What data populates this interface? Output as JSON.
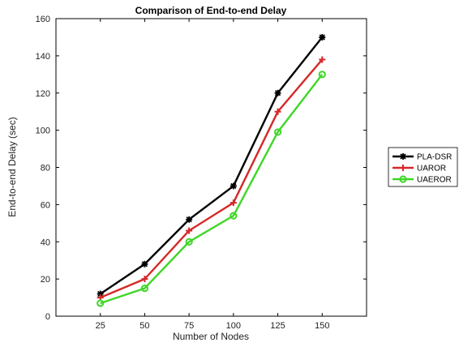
{
  "chart_data": {
    "type": "line",
    "title": "Comparison of End-to-end Delay",
    "xlabel": "Number of Nodes",
    "ylabel": "End-to-end Delay (sec)",
    "x": [
      25,
      50,
      75,
      100,
      125,
      150
    ],
    "xlim": [
      0,
      175
    ],
    "ylim": [
      0,
      160
    ],
    "xticks": [
      "25",
      "50",
      "75",
      "100",
      "125",
      "150"
    ],
    "yticks": [
      "0",
      "20",
      "40",
      "60",
      "80",
      "100",
      "120",
      "140",
      "160"
    ],
    "legend_placement": "outside-right",
    "grid": false,
    "series": [
      {
        "name": "PLA-DSR",
        "values": [
          12,
          28,
          52,
          70,
          120,
          150
        ],
        "color": "#000000",
        "marker": "star"
      },
      {
        "name": "UAROR",
        "values": [
          10,
          20,
          46,
          61,
          110,
          138
        ],
        "color": "#d62828",
        "marker": "plus"
      },
      {
        "name": "UAEROR",
        "values": [
          7,
          15,
          40,
          54,
          99,
          130
        ],
        "color": "#3fd627",
        "marker": "circle"
      }
    ]
  }
}
